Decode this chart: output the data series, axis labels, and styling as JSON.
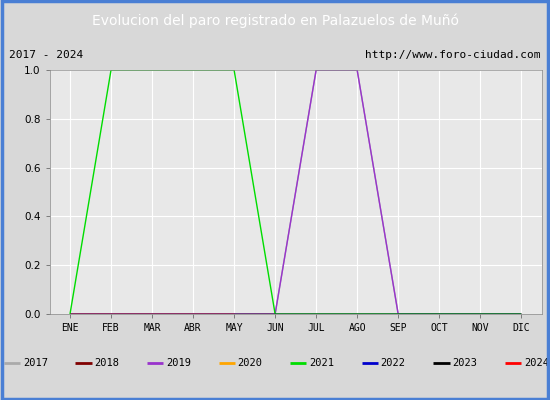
{
  "title": "Evolucion del paro registrado en Palazuelos de Muñó",
  "subtitle_left": "2017 - 2024",
  "subtitle_right": "http://www.foro-ciudad.com",
  "months": [
    "ENE",
    "FEB",
    "MAR",
    "ABR",
    "MAY",
    "JUN",
    "JUL",
    "AGO",
    "SEP",
    "OCT",
    "NOV",
    "DIC"
  ],
  "month_indices": [
    0,
    1,
    2,
    3,
    4,
    5,
    6,
    7,
    8,
    9,
    10,
    11
  ],
  "series": {
    "2017": {
      "color": "#aaaaaa",
      "values": [
        0,
        0,
        0,
        0,
        0,
        0,
        1.0,
        1.0,
        0,
        0,
        0,
        0
      ]
    },
    "2018": {
      "color": "#800000",
      "values": [
        0,
        0,
        0,
        0,
        0,
        0,
        0,
        0,
        0,
        0,
        0,
        0
      ]
    },
    "2019": {
      "color": "#9933cc",
      "values": [
        0,
        0,
        0,
        0,
        0,
        0,
        1.0,
        1.0,
        0,
        0,
        0,
        0
      ]
    },
    "2020": {
      "color": "#ffa500",
      "values": [
        0,
        0,
        0,
        0,
        0,
        0,
        0,
        0,
        0,
        0,
        0,
        0
      ]
    },
    "2021": {
      "color": "#00dd00",
      "values": [
        0,
        1.0,
        1.0,
        1.0,
        1.0,
        0,
        0,
        0,
        0,
        0,
        0,
        0
      ]
    },
    "2022": {
      "color": "#0000cc",
      "values": [
        0,
        0,
        0,
        0,
        0,
        0,
        0,
        0,
        0,
        0,
        0,
        0
      ]
    },
    "2023": {
      "color": "#000000",
      "values": [
        0,
        0,
        0,
        0,
        0,
        0,
        0,
        0,
        0,
        0,
        0,
        0
      ]
    },
    "2024": {
      "color": "#ff0000",
      "values": [
        0,
        0,
        0,
        0,
        0,
        null,
        null,
        null,
        null,
        null,
        null,
        null
      ]
    }
  },
  "title_bg_color": "#4a7fd4",
  "title_text_color": "#ffffff",
  "plot_bg_color": "#d8d8d8",
  "axes_bg_color": "#e8e8e8",
  "grid_color": "#ffffff",
  "legend_bg_color": "#d8d8d8",
  "border_color": "#4a7fd4",
  "ylim": [
    0.0,
    1.0
  ],
  "yticks": [
    0.0,
    0.2,
    0.4,
    0.6,
    0.8,
    1.0
  ],
  "title_fontsize": 10,
  "tick_fontsize": 7,
  "legend_fontsize": 7.5
}
